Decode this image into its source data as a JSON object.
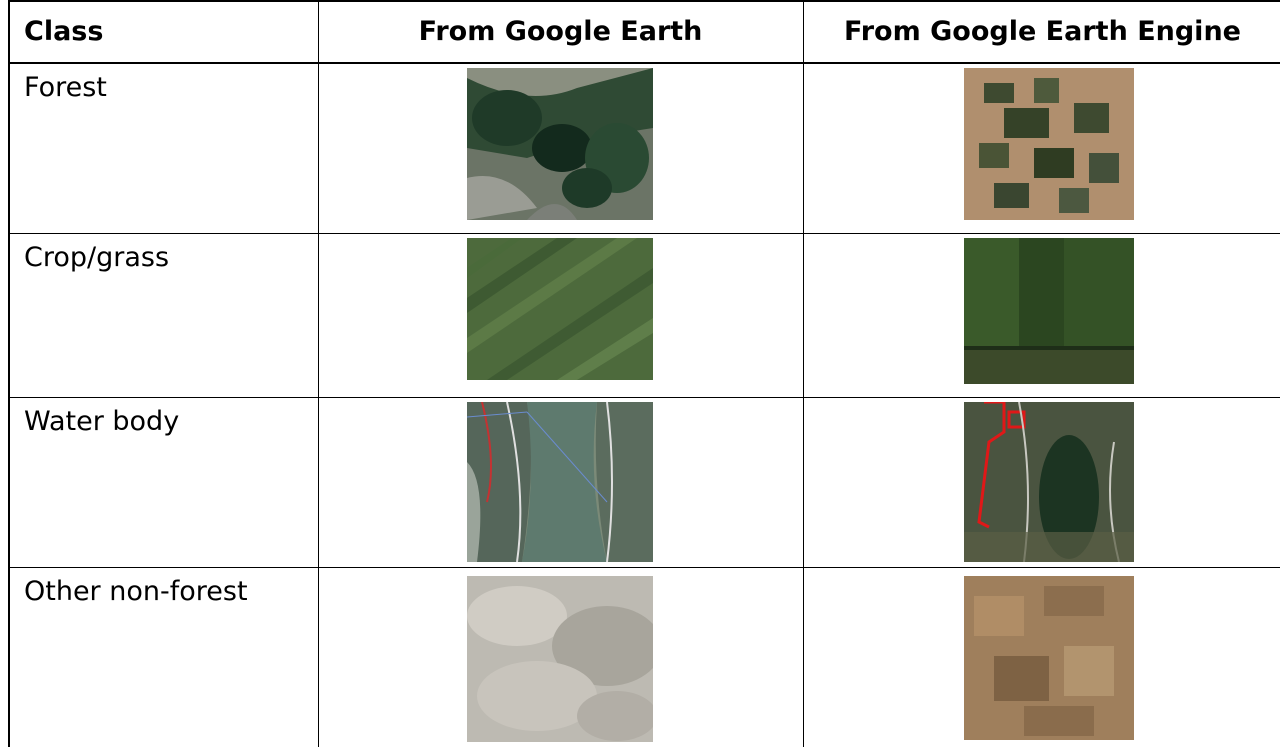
{
  "table": {
    "headers": {
      "class": "Class",
      "google_earth": "From Google Earth",
      "google_earth_engine": "From Google Earth Engine"
    },
    "rows": [
      {
        "class": "Forest"
      },
      {
        "class": "Crop/grass"
      },
      {
        "class": "Water body"
      },
      {
        "class": "Other non-forest"
      }
    ]
  }
}
